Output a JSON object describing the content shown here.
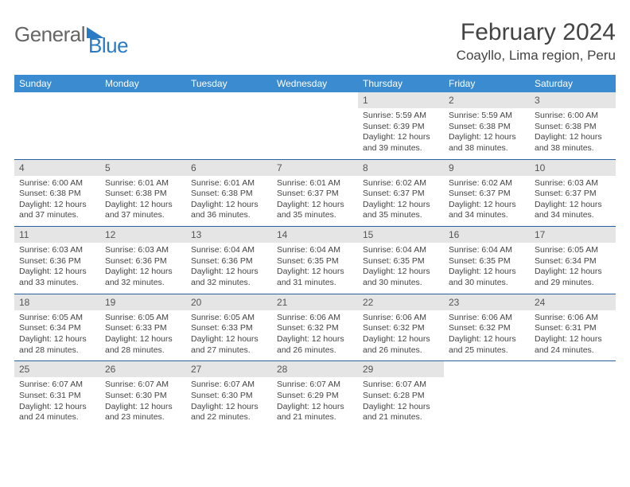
{
  "brand": {
    "name1": "General",
    "name2": "Blue"
  },
  "title": "February 2024",
  "location": "Coayllo, Lima region, Peru",
  "headers": [
    "Sunday",
    "Monday",
    "Tuesday",
    "Wednesday",
    "Thursday",
    "Friday",
    "Saturday"
  ],
  "colors": {
    "header_bg": "#3a8bd0",
    "row_border": "#2960a0",
    "daynum_bg": "#e5e5e5"
  },
  "weeks": [
    {
      "days": [
        {
          "num": "",
          "sunrise": "",
          "sunset": "",
          "daylight": ""
        },
        {
          "num": "",
          "sunrise": "",
          "sunset": "",
          "daylight": ""
        },
        {
          "num": "",
          "sunrise": "",
          "sunset": "",
          "daylight": ""
        },
        {
          "num": "",
          "sunrise": "",
          "sunset": "",
          "daylight": ""
        },
        {
          "num": "1",
          "sunrise": "Sunrise: 5:59 AM",
          "sunset": "Sunset: 6:39 PM",
          "daylight": "Daylight: 12 hours and 39 minutes."
        },
        {
          "num": "2",
          "sunrise": "Sunrise: 5:59 AM",
          "sunset": "Sunset: 6:38 PM",
          "daylight": "Daylight: 12 hours and 38 minutes."
        },
        {
          "num": "3",
          "sunrise": "Sunrise: 6:00 AM",
          "sunset": "Sunset: 6:38 PM",
          "daylight": "Daylight: 12 hours and 38 minutes."
        }
      ]
    },
    {
      "days": [
        {
          "num": "4",
          "sunrise": "Sunrise: 6:00 AM",
          "sunset": "Sunset: 6:38 PM",
          "daylight": "Daylight: 12 hours and 37 minutes."
        },
        {
          "num": "5",
          "sunrise": "Sunrise: 6:01 AM",
          "sunset": "Sunset: 6:38 PM",
          "daylight": "Daylight: 12 hours and 37 minutes."
        },
        {
          "num": "6",
          "sunrise": "Sunrise: 6:01 AM",
          "sunset": "Sunset: 6:38 PM",
          "daylight": "Daylight: 12 hours and 36 minutes."
        },
        {
          "num": "7",
          "sunrise": "Sunrise: 6:01 AM",
          "sunset": "Sunset: 6:37 PM",
          "daylight": "Daylight: 12 hours and 35 minutes."
        },
        {
          "num": "8",
          "sunrise": "Sunrise: 6:02 AM",
          "sunset": "Sunset: 6:37 PM",
          "daylight": "Daylight: 12 hours and 35 minutes."
        },
        {
          "num": "9",
          "sunrise": "Sunrise: 6:02 AM",
          "sunset": "Sunset: 6:37 PM",
          "daylight": "Daylight: 12 hours and 34 minutes."
        },
        {
          "num": "10",
          "sunrise": "Sunrise: 6:03 AM",
          "sunset": "Sunset: 6:37 PM",
          "daylight": "Daylight: 12 hours and 34 minutes."
        }
      ]
    },
    {
      "days": [
        {
          "num": "11",
          "sunrise": "Sunrise: 6:03 AM",
          "sunset": "Sunset: 6:36 PM",
          "daylight": "Daylight: 12 hours and 33 minutes."
        },
        {
          "num": "12",
          "sunrise": "Sunrise: 6:03 AM",
          "sunset": "Sunset: 6:36 PM",
          "daylight": "Daylight: 12 hours and 32 minutes."
        },
        {
          "num": "13",
          "sunrise": "Sunrise: 6:04 AM",
          "sunset": "Sunset: 6:36 PM",
          "daylight": "Daylight: 12 hours and 32 minutes."
        },
        {
          "num": "14",
          "sunrise": "Sunrise: 6:04 AM",
          "sunset": "Sunset: 6:35 PM",
          "daylight": "Daylight: 12 hours and 31 minutes."
        },
        {
          "num": "15",
          "sunrise": "Sunrise: 6:04 AM",
          "sunset": "Sunset: 6:35 PM",
          "daylight": "Daylight: 12 hours and 30 minutes."
        },
        {
          "num": "16",
          "sunrise": "Sunrise: 6:04 AM",
          "sunset": "Sunset: 6:35 PM",
          "daylight": "Daylight: 12 hours and 30 minutes."
        },
        {
          "num": "17",
          "sunrise": "Sunrise: 6:05 AM",
          "sunset": "Sunset: 6:34 PM",
          "daylight": "Daylight: 12 hours and 29 minutes."
        }
      ]
    },
    {
      "days": [
        {
          "num": "18",
          "sunrise": "Sunrise: 6:05 AM",
          "sunset": "Sunset: 6:34 PM",
          "daylight": "Daylight: 12 hours and 28 minutes."
        },
        {
          "num": "19",
          "sunrise": "Sunrise: 6:05 AM",
          "sunset": "Sunset: 6:33 PM",
          "daylight": "Daylight: 12 hours and 28 minutes."
        },
        {
          "num": "20",
          "sunrise": "Sunrise: 6:05 AM",
          "sunset": "Sunset: 6:33 PM",
          "daylight": "Daylight: 12 hours and 27 minutes."
        },
        {
          "num": "21",
          "sunrise": "Sunrise: 6:06 AM",
          "sunset": "Sunset: 6:32 PM",
          "daylight": "Daylight: 12 hours and 26 minutes."
        },
        {
          "num": "22",
          "sunrise": "Sunrise: 6:06 AM",
          "sunset": "Sunset: 6:32 PM",
          "daylight": "Daylight: 12 hours and 26 minutes."
        },
        {
          "num": "23",
          "sunrise": "Sunrise: 6:06 AM",
          "sunset": "Sunset: 6:32 PM",
          "daylight": "Daylight: 12 hours and 25 minutes."
        },
        {
          "num": "24",
          "sunrise": "Sunrise: 6:06 AM",
          "sunset": "Sunset: 6:31 PM",
          "daylight": "Daylight: 12 hours and 24 minutes."
        }
      ]
    },
    {
      "days": [
        {
          "num": "25",
          "sunrise": "Sunrise: 6:07 AM",
          "sunset": "Sunset: 6:31 PM",
          "daylight": "Daylight: 12 hours and 24 minutes."
        },
        {
          "num": "26",
          "sunrise": "Sunrise: 6:07 AM",
          "sunset": "Sunset: 6:30 PM",
          "daylight": "Daylight: 12 hours and 23 minutes."
        },
        {
          "num": "27",
          "sunrise": "Sunrise: 6:07 AM",
          "sunset": "Sunset: 6:30 PM",
          "daylight": "Daylight: 12 hours and 22 minutes."
        },
        {
          "num": "28",
          "sunrise": "Sunrise: 6:07 AM",
          "sunset": "Sunset: 6:29 PM",
          "daylight": "Daylight: 12 hours and 21 minutes."
        },
        {
          "num": "29",
          "sunrise": "Sunrise: 6:07 AM",
          "sunset": "Sunset: 6:28 PM",
          "daylight": "Daylight: 12 hours and 21 minutes."
        },
        {
          "num": "",
          "sunrise": "",
          "sunset": "",
          "daylight": ""
        },
        {
          "num": "",
          "sunrise": "",
          "sunset": "",
          "daylight": ""
        }
      ]
    }
  ]
}
